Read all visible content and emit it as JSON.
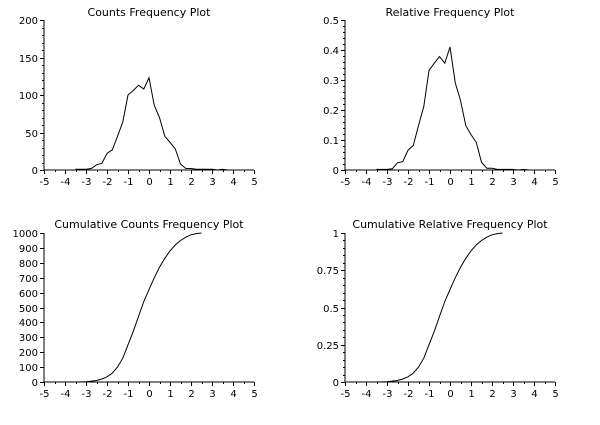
{
  "chart_data": [
    {
      "id": "counts",
      "type": "line",
      "title": "Counts Frequency Plot",
      "xlabel": "",
      "ylabel": "",
      "xlim": [
        -5,
        5
      ],
      "ylim": [
        0,
        200
      ],
      "x_ticks": [
        -5,
        -4,
        -3,
        -2,
        -1,
        0,
        1,
        2,
        3,
        4,
        5
      ],
      "y_ticks": [
        0,
        50,
        100,
        150,
        200
      ],
      "y_tick_labels": [
        "0",
        "50",
        "100",
        "150",
        "200"
      ],
      "grid": false,
      "series": [
        {
          "x": [
            -3.5,
            -3.25,
            -3.0,
            -2.75,
            -2.5,
            -2.25,
            -2.0,
            -1.75,
            -1.5,
            -1.25,
            -1.0,
            -0.75,
            -0.5,
            -0.25,
            0.0,
            0.25,
            0.5,
            0.75,
            1.0,
            1.25,
            1.5,
            1.75,
            2.0,
            2.25,
            2.5,
            2.75,
            3.0,
            3.25,
            3.5,
            3.75
          ],
          "y": [
            1,
            1,
            1,
            2,
            7,
            9,
            22,
            27,
            45,
            64,
            100,
            106,
            113,
            108,
            123,
            86,
            70,
            45,
            37,
            28,
            8,
            2,
            2,
            1,
            1,
            1,
            1,
            0,
            1,
            0
          ]
        }
      ]
    },
    {
      "id": "relative",
      "type": "line",
      "title": "Relative Frequency Plot",
      "xlabel": "",
      "ylabel": "",
      "xlim": [
        -5,
        5
      ],
      "ylim": [
        0,
        0.5
      ],
      "x_ticks": [
        -5,
        -4,
        -3,
        -2,
        -1,
        0,
        1,
        2,
        3,
        4,
        5
      ],
      "y_ticks": [
        0,
        0.1,
        0.2,
        0.3,
        0.4,
        0.5
      ],
      "y_tick_labels": [
        "0",
        "0.1",
        "0.2",
        "0.3",
        "0.4",
        "0.5"
      ],
      "grid": false,
      "series": [
        {
          "x": [
            -3.5,
            -3.25,
            -3.0,
            -2.75,
            -2.5,
            -2.25,
            -2.0,
            -1.75,
            -1.5,
            -1.25,
            -1.0,
            -0.75,
            -0.5,
            -0.25,
            0.0,
            0.25,
            0.5,
            0.75,
            1.0,
            1.25,
            1.5,
            1.75,
            2.0,
            2.25,
            2.5,
            2.75,
            3.0,
            3.25,
            3.5,
            3.75
          ],
          "y": [
            0.002,
            0.002,
            0.002,
            0.004,
            0.024,
            0.028,
            0.066,
            0.082,
            0.148,
            0.212,
            0.332,
            0.356,
            0.378,
            0.356,
            0.41,
            0.29,
            0.232,
            0.148,
            0.118,
            0.092,
            0.026,
            0.006,
            0.006,
            0.002,
            0.002,
            0.002,
            0.002,
            0.0,
            0.002,
            0.0
          ]
        }
      ]
    },
    {
      "id": "cumulative-counts",
      "type": "line",
      "title": "Cumulative Counts Frequency Plot",
      "xlabel": "",
      "ylabel": "",
      "xlim": [
        -5,
        5
      ],
      "ylim": [
        0,
        1000
      ],
      "x_ticks": [
        -5,
        -4,
        -3,
        -2,
        -1,
        0,
        1,
        2,
        3,
        4,
        5
      ],
      "y_ticks": [
        0,
        100,
        200,
        300,
        400,
        500,
        600,
        700,
        800,
        900,
        1000
      ],
      "y_tick_labels": [
        "0",
        "100",
        "200",
        "300",
        "400",
        "500",
        "600",
        "700",
        "800",
        "900",
        "1000"
      ],
      "grid": false,
      "series": [
        {
          "x": [
            -3.5,
            -3.0,
            -2.5,
            -2.25,
            -2.0,
            -1.75,
            -1.5,
            -1.25,
            -1.0,
            -0.75,
            -0.5,
            -0.25,
            0.0,
            0.25,
            0.5,
            0.75,
            1.0,
            1.25,
            1.5,
            1.75,
            2.0,
            2.25,
            2.5
          ],
          "y": [
            0,
            2,
            10,
            20,
            35,
            60,
            100,
            160,
            250,
            340,
            440,
            540,
            620,
            700,
            770,
            830,
            880,
            920,
            950,
            972,
            988,
            996,
            1000
          ]
        }
      ]
    },
    {
      "id": "cumulative-relative",
      "type": "line",
      "title": "Cumulative Relative Frequency Plot",
      "xlabel": "",
      "ylabel": "",
      "xlim": [
        -5,
        5
      ],
      "ylim": [
        0,
        1
      ],
      "x_ticks": [
        -5,
        -4,
        -3,
        -2,
        -1,
        0,
        1,
        2,
        3,
        4,
        5
      ],
      "y_ticks": [
        0,
        0.25,
        0.5,
        0.75,
        1
      ],
      "y_tick_labels": [
        "0",
        "0.25",
        "0.5",
        "0.75",
        "1"
      ],
      "grid": false,
      "series": [
        {
          "x": [
            -3.5,
            -3.0,
            -2.5,
            -2.25,
            -2.0,
            -1.75,
            -1.5,
            -1.25,
            -1.0,
            -0.75,
            -0.5,
            -0.25,
            0.0,
            0.25,
            0.5,
            0.75,
            1.0,
            1.25,
            1.5,
            1.75,
            2.0,
            2.25,
            2.5
          ],
          "y": [
            0,
            0.002,
            0.01,
            0.02,
            0.035,
            0.06,
            0.1,
            0.16,
            0.25,
            0.34,
            0.44,
            0.54,
            0.62,
            0.7,
            0.77,
            0.83,
            0.88,
            0.92,
            0.95,
            0.972,
            0.988,
            0.996,
            1.0
          ]
        }
      ]
    }
  ]
}
